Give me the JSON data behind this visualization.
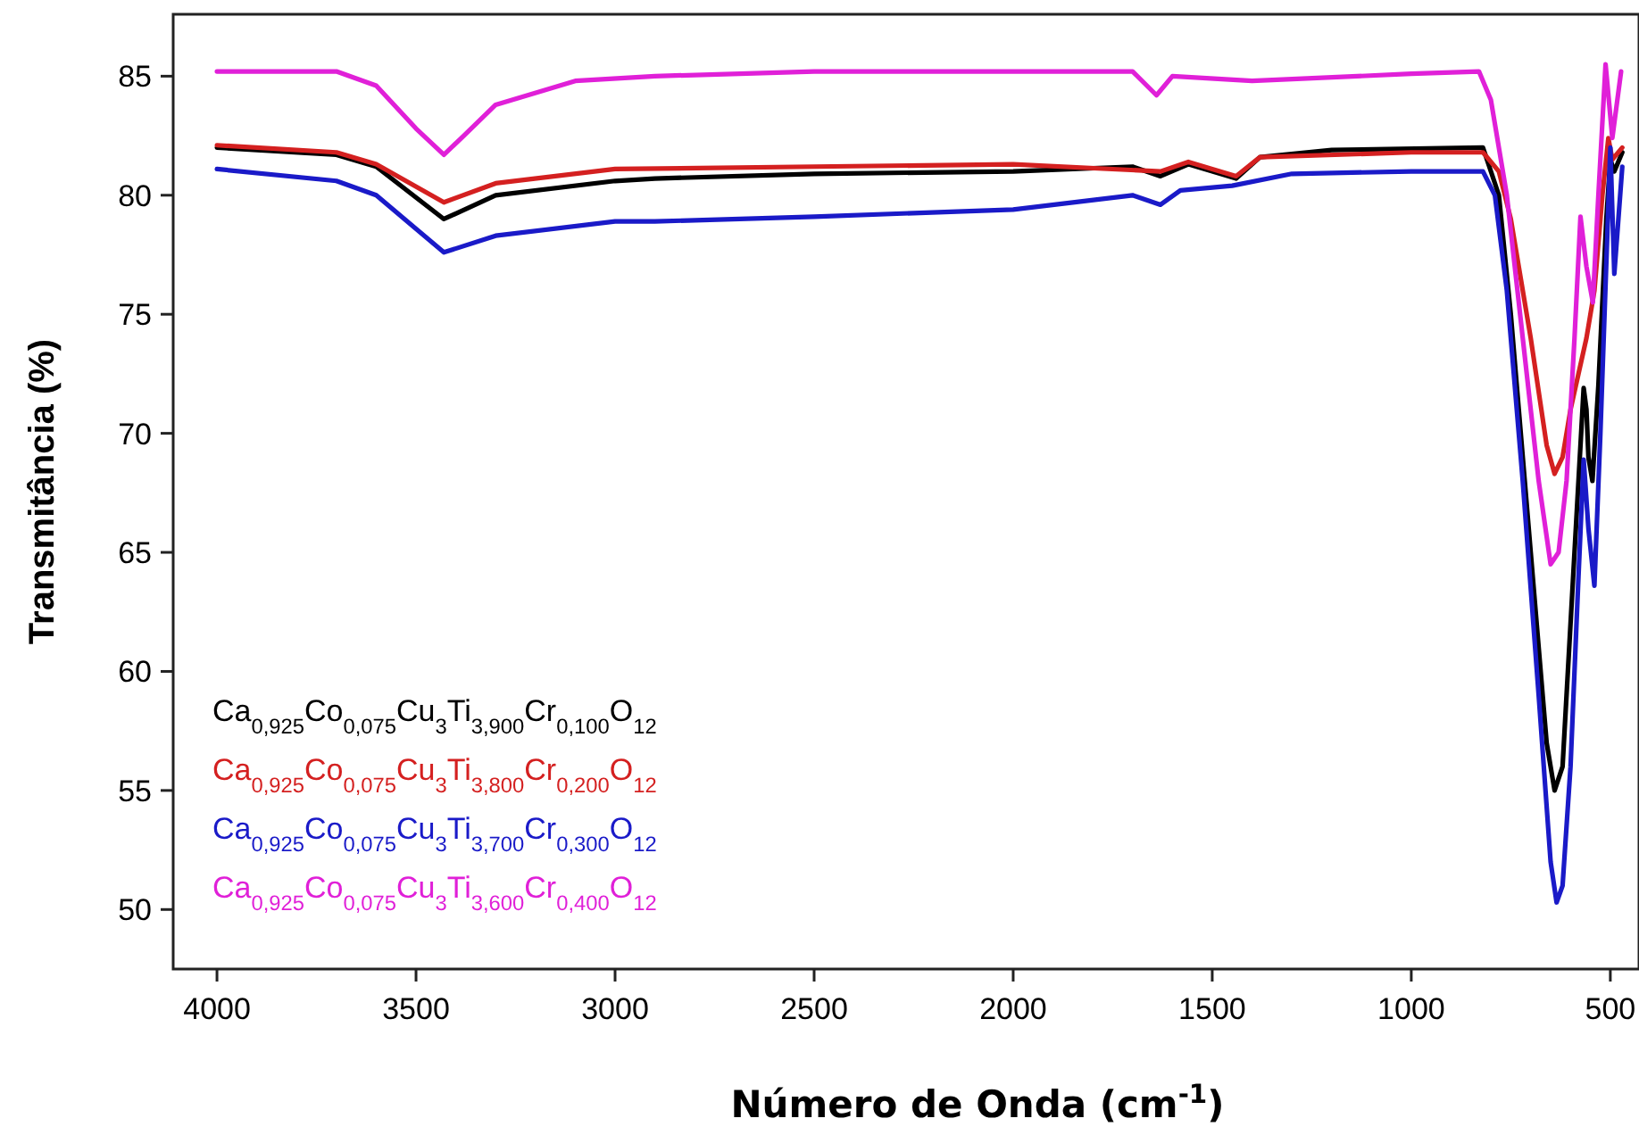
{
  "chart_data": {
    "type": "line",
    "xlabel": "Número de Onda (cm$^{-1}$)",
    "ylabel": "Transmitância (%)",
    "xlim": [
      4110,
      428
    ],
    "ylim": [
      47.5,
      87.6
    ],
    "xticks": [
      4000,
      3500,
      3000,
      2500,
      2000,
      1500,
      1000,
      500
    ],
    "yticks": [
      50,
      55,
      60,
      65,
      70,
      75,
      80,
      85
    ],
    "grid": false,
    "marker": "none",
    "line_style": "solid",
    "series": [
      {
        "name": "Ca$_{0,925}$Co$_{0,075}$Cu$_{3}$Ti$_{3,900}$Cr$_{0,100}$O$_{12}$",
        "color": "#000000",
        "x": [
          4000,
          3700,
          3600,
          3430,
          3300,
          3000,
          2900,
          2500,
          2000,
          1700,
          1630,
          1560,
          1440,
          1380,
          1200,
          820,
          780,
          750,
          700,
          660,
          640,
          620,
          600,
          580,
          567,
          560,
          555,
          545,
          530,
          510,
          500,
          490,
          470
        ],
        "values": [
          82.0,
          81.7,
          81.2,
          79.0,
          80.0,
          80.6,
          80.7,
          80.9,
          81.0,
          81.2,
          80.8,
          81.3,
          80.7,
          81.6,
          81.9,
          82.0,
          80,
          75,
          65,
          57,
          55.0,
          56,
          62,
          68,
          71.9,
          71,
          69,
          68,
          72,
          79,
          81.5,
          81.0,
          81.8
        ]
      },
      {
        "name": "Ca$_{0,925}$Co$_{0,075}$Cu$_{3}$Ti$_{3,800}$Cr$_{0,200}$O$_{12}$",
        "color": "#d42020",
        "x": [
          4000,
          3700,
          3600,
          3430,
          3300,
          3000,
          2500,
          2000,
          1630,
          1560,
          1440,
          1380,
          1000,
          820,
          780,
          750,
          700,
          660,
          640,
          620,
          600,
          580,
          560,
          540,
          520,
          505,
          495,
          470
        ],
        "values": [
          82.1,
          81.8,
          81.3,
          79.7,
          80.5,
          81.1,
          81.2,
          81.3,
          81.0,
          81.4,
          80.8,
          81.6,
          81.8,
          81.8,
          81.0,
          79,
          74,
          69.5,
          68.3,
          69,
          71,
          72.5,
          74,
          76,
          80,
          82.4,
          81.5,
          82.0
        ]
      },
      {
        "name": "Ca$_{0,925}$Co$_{0,075}$Cu$_{3}$Ti$_{3,700}$Cr$_{0,300}$O$_{12}$",
        "color": "#1a1ac8",
        "x": [
          4000,
          3700,
          3600,
          3430,
          3300,
          3000,
          2900,
          2500,
          2000,
          1700,
          1630,
          1580,
          1450,
          1300,
          1000,
          820,
          790,
          760,
          720,
          680,
          650,
          635,
          620,
          600,
          580,
          567,
          555,
          540,
          525,
          500,
          490,
          470
        ],
        "values": [
          81.1,
          80.6,
          80.0,
          77.6,
          78.3,
          78.9,
          78.9,
          79.1,
          79.4,
          80.0,
          79.6,
          80.2,
          80.4,
          80.9,
          81.0,
          81.0,
          80,
          76,
          68,
          59,
          52,
          50.3,
          51,
          56,
          64,
          68.9,
          66,
          63.6,
          70,
          82.0,
          76.7,
          81.2
        ]
      },
      {
        "name": "Ca$_{0,925}$Co$_{0,075}$Cu$_{3}$Ti$_{3,600}$Cr$_{0,400}$O$_{12}$",
        "color": "#e020d8",
        "x": [
          4000,
          3700,
          3600,
          3500,
          3430,
          3380,
          3300,
          3100,
          2900,
          2500,
          1700,
          1640,
          1600,
          1400,
          1000,
          830,
          800,
          760,
          720,
          680,
          650,
          630,
          610,
          590,
          575,
          560,
          544,
          530,
          512,
          495,
          473
        ],
        "values": [
          85.2,
          85.2,
          84.6,
          82.8,
          81.7,
          82.5,
          83.8,
          84.8,
          85.0,
          85.2,
          85.2,
          84.2,
          85.0,
          84.8,
          85.1,
          85.2,
          84.0,
          80,
          74,
          68,
          64.5,
          65,
          68,
          74,
          79.1,
          77,
          75.5,
          80,
          85.5,
          82.4,
          85.2
        ]
      }
    ]
  }
}
